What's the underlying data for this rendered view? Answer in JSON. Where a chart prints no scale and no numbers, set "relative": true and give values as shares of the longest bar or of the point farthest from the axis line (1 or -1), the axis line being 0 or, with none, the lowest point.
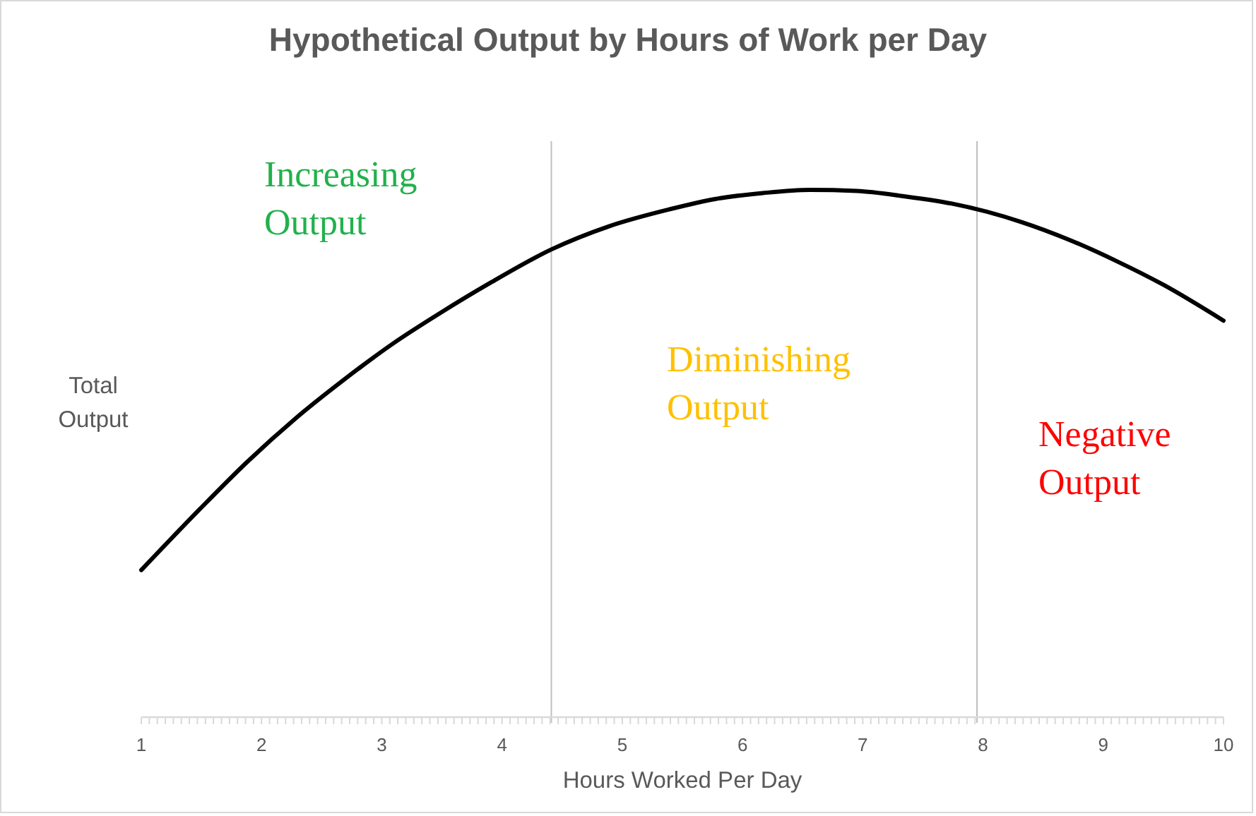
{
  "chart_data": {
    "type": "line",
    "title": "Hypothetical Output by Hours of Work per Day",
    "xlabel": "Hours Worked Per Day",
    "ylabel": "Total Output",
    "relative": true,
    "line_style": "solid",
    "xlim": [
      1,
      10
    ],
    "xticks": [
      1,
      {
        "value": 1.0667,
        "label": null
      },
      {
        "value": 1.1333,
        "label": null
      },
      {
        "value": 1.2,
        "label": null
      },
      {
        "value": 1.2667,
        "label": null
      },
      {
        "value": 1.3333,
        "label": null
      },
      {
        "value": 1.4,
        "label": null
      },
      {
        "value": 1.4667,
        "label": null
      },
      {
        "value": 1.5333,
        "label": null
      },
      {
        "value": 1.6,
        "label": null
      },
      {
        "value": 1.6667,
        "label": null
      },
      {
        "value": 1.7333,
        "label": null
      },
      {
        "value": 1.8,
        "label": null
      },
      {
        "value": 1.8667,
        "label": null
      },
      {
        "value": 1.9333,
        "label": null
      },
      2,
      {
        "value": 2.0667,
        "label": null
      },
      {
        "value": 2.1333,
        "label": null
      },
      {
        "value": 2.2,
        "label": null
      },
      {
        "value": 2.2667,
        "label": null
      },
      {
        "value": 2.3333,
        "label": null
      },
      {
        "value": 2.4,
        "label": null
      },
      {
        "value": 2.4667,
        "label": null
      },
      {
        "value": 2.5333,
        "label": null
      },
      {
        "value": 2.6,
        "label": null
      },
      {
        "value": 2.6667,
        "label": null
      },
      {
        "value": 2.7333,
        "label": null
      },
      {
        "value": 2.8,
        "label": null
      },
      {
        "value": 2.8667,
        "label": null
      },
      {
        "value": 2.9333,
        "label": null
      },
      3,
      {
        "value": 3.0667,
        "label": null
      },
      {
        "value": 3.1333,
        "label": null
      },
      {
        "value": 3.2,
        "label": null
      },
      {
        "value": 3.2667,
        "label": null
      },
      {
        "value": 3.3333,
        "label": null
      },
      {
        "value": 3.4,
        "label": null
      },
      {
        "value": 3.4667,
        "label": null
      },
      {
        "value": 3.5333,
        "label": null
      },
      {
        "value": 3.6,
        "label": null
      },
      {
        "value": 3.6667,
        "label": null
      },
      {
        "value": 3.7333,
        "label": null
      },
      {
        "value": 3.8,
        "label": null
      },
      {
        "value": 3.8667,
        "label": null
      },
      {
        "value": 3.9333,
        "label": null
      },
      4,
      {
        "value": 4.0667,
        "label": null
      },
      {
        "value": 4.1333,
        "label": null
      },
      {
        "value": 4.2,
        "label": null
      },
      {
        "value": 4.2667,
        "label": null
      },
      {
        "value": 4.3333,
        "label": null
      },
      {
        "value": 4.4,
        "label": null
      },
      {
        "value": 4.4667,
        "label": null
      },
      {
        "value": 4.5333,
        "label": null
      },
      {
        "value": 4.6,
        "label": null
      },
      {
        "value": 4.6667,
        "label": null
      },
      {
        "value": 4.7333,
        "label": null
      },
      {
        "value": 4.8,
        "label": null
      },
      {
        "value": 4.8667,
        "label": null
      },
      {
        "value": 4.9333,
        "label": null
      },
      5,
      {
        "value": 5.0667,
        "label": null
      },
      {
        "value": 5.1333,
        "label": null
      },
      {
        "value": 5.2,
        "label": null
      },
      {
        "value": 5.2667,
        "label": null
      },
      {
        "value": 5.3333,
        "label": null
      },
      {
        "value": 5.4,
        "label": null
      },
      {
        "value": 5.4667,
        "label": null
      },
      {
        "value": 5.5333,
        "label": null
      },
      {
        "value": 5.6,
        "label": null
      },
      {
        "value": 5.6667,
        "label": null
      },
      {
        "value": 5.7333,
        "label": null
      },
      {
        "value": 5.8,
        "label": null
      },
      {
        "value": 5.8667,
        "label": null
      },
      {
        "value": 5.9333,
        "label": null
      },
      6,
      {
        "value": 6.0667,
        "label": null
      },
      {
        "value": 6.1333,
        "label": null
      },
      {
        "value": 6.2,
        "label": null
      },
      {
        "value": 6.2667,
        "label": null
      },
      {
        "value": 6.3333,
        "label": null
      },
      {
        "value": 6.4,
        "label": null
      },
      {
        "value": 6.4667,
        "label": null
      },
      {
        "value": 6.5333,
        "label": null
      },
      {
        "value": 6.6,
        "label": null
      },
      {
        "value": 6.6667,
        "label": null
      },
      {
        "value": 6.7333,
        "label": null
      },
      {
        "value": 6.8,
        "label": null
      },
      {
        "value": 6.8667,
        "label": null
      },
      {
        "value": 6.9333,
        "label": null
      },
      7,
      {
        "value": 7.0667,
        "label": null
      },
      {
        "value": 7.1333,
        "label": null
      },
      {
        "value": 7.2,
        "label": null
      },
      {
        "value": 7.2667,
        "label": null
      },
      {
        "value": 7.3333,
        "label": null
      },
      {
        "value": 7.4,
        "label": null
      },
      {
        "value": 7.4667,
        "label": null
      },
      {
        "value": 7.5333,
        "label": null
      },
      {
        "value": 7.6,
        "label": null
      },
      {
        "value": 7.6667,
        "label": null
      },
      {
        "value": 7.7333,
        "label": null
      },
      {
        "value": 7.8,
        "label": null
      },
      {
        "value": 7.8667,
        "label": null
      },
      {
        "value": 7.9333,
        "label": null
      },
      8,
      {
        "value": 8.0667,
        "label": null
      },
      {
        "value": 8.1333,
        "label": null
      },
      {
        "value": 8.2,
        "label": null
      },
      {
        "value": 8.2667,
        "label": null
      },
      {
        "value": 8.3333,
        "label": null
      },
      {
        "value": 8.4,
        "label": null
      },
      {
        "value": 8.4667,
        "label": null
      },
      {
        "value": 8.5333,
        "label": null
      },
      {
        "value": 8.6,
        "label": null
      },
      {
        "value": 8.6667,
        "label": null
      },
      {
        "value": 8.7333,
        "label": null
      },
      {
        "value": 8.8,
        "label": null
      },
      {
        "value": 8.8667,
        "label": null
      },
      {
        "value": 8.9333,
        "label": null
      },
      9,
      {
        "value": 9.0667,
        "label": null
      },
      {
        "value": 9.1333,
        "label": null
      },
      {
        "value": 9.2,
        "label": null
      },
      {
        "value": 9.2667,
        "label": null
      },
      {
        "value": 9.3333,
        "label": null
      },
      {
        "value": 9.4,
        "label": null
      },
      {
        "value": 9.4667,
        "label": null
      },
      {
        "value": 9.5333,
        "label": null
      },
      {
        "value": 9.6,
        "label": null
      },
      {
        "value": 9.6667,
        "label": null
      },
      {
        "value": 9.7333,
        "label": null
      },
      {
        "value": 9.8,
        "label": null
      },
      {
        "value": 9.8667,
        "label": null
      },
      {
        "value": 9.9333,
        "label": null
      },
      10
    ],
    "series": [
      {
        "color": "#000000",
        "x": [
          1,
          1.48,
          1.88,
          2.28,
          2.68,
          3.09,
          3.49,
          3.89,
          4.41,
          4.89,
          5.39,
          5.78,
          6.17,
          6.56,
          6.95,
          7.34,
          7.74,
          8.32,
          8.72,
          9.11,
          9.5,
          10
        ],
        "values": [
          0.279,
          0.393,
          0.484,
          0.566,
          0.639,
          0.708,
          0.767,
          0.822,
          0.887,
          0.931,
          0.963,
          0.983,
          0.994,
          1,
          0.998,
          0.988,
          0.974,
          0.939,
          0.905,
          0.865,
          0.82,
          0.752
        ]
      }
    ],
    "ref_lines": [
      {
        "axis": "x",
        "value": 4.41,
        "color": "#bfbfbf"
      },
      {
        "axis": "x",
        "value": 7.95,
        "color": "#bfbfbf"
      }
    ],
    "annotations": [
      "Increasing Output",
      "Diminishing Output",
      "Negative Output"
    ]
  }
}
